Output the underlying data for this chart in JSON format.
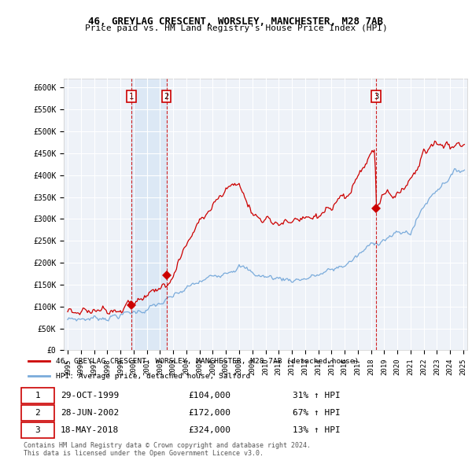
{
  "title": "46, GREYLAG CRESCENT, WORSLEY, MANCHESTER, M28 7AB",
  "subtitle": "Price paid vs. HM Land Registry's House Price Index (HPI)",
  "legend_line1": "46, GREYLAG CRESCENT, WORSLEY, MANCHESTER, M28 7AB (detached house)",
  "legend_line2": "HPI: Average price, detached house, Salford",
  "footer1": "Contains HM Land Registry data © Crown copyright and database right 2024.",
  "footer2": "This data is licensed under the Open Government Licence v3.0.",
  "transactions": [
    {
      "num": 1,
      "date": "29-OCT-1999",
      "price": 104000,
      "pct": "31%",
      "dir": "↑",
      "x_year": 1999.83
    },
    {
      "num": 2,
      "date": "28-JUN-2002",
      "price": 172000,
      "pct": "67%",
      "dir": "↑",
      "x_year": 2002.49
    },
    {
      "num": 3,
      "date": "18-MAY-2018",
      "price": 324000,
      "pct": "13%",
      "dir": "↑",
      "x_year": 2018.38
    }
  ],
  "hpi_color": "#7aabdb",
  "price_color": "#cc0000",
  "vline_color": "#cc0000",
  "shade_color": "#dce8f5",
  "background_chart": "#eef2f8",
  "grid_color": "#ffffff",
  "ylim": [
    0,
    620000
  ],
  "xlim_start": 1994.7,
  "xlim_end": 2025.3
}
